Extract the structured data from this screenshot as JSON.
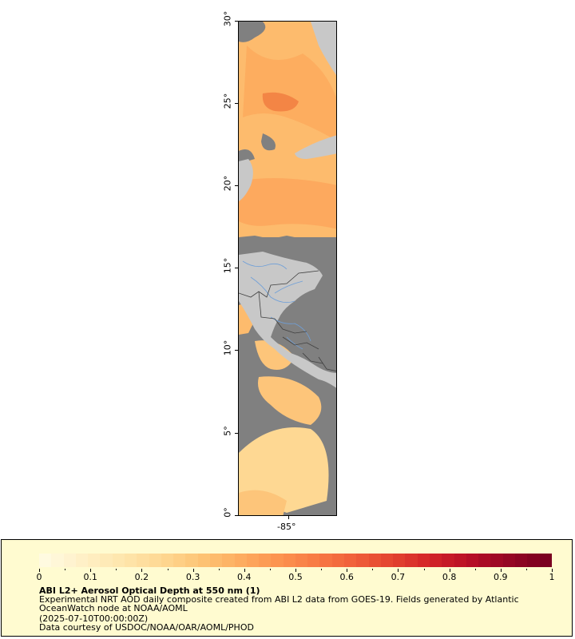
{
  "map": {
    "lat_ticks": [
      "0°",
      "5°",
      "10°",
      "15°",
      "20°",
      "25°",
      "30°"
    ],
    "lon_ticks": [
      "-85°"
    ],
    "lat_range": [
      0,
      30
    ],
    "colors": {
      "ocean_nodata": "#808080",
      "land": "#c8c8c8",
      "rivers": "#6f9fd8",
      "borders": "#404040",
      "aod_low": "#ffeebd",
      "aod_mid": "#fd9b4a",
      "aod_high": "#d7301f"
    }
  },
  "legend": {
    "colorbar_ticks": [
      "0",
      "0.1",
      "0.2",
      "0.3",
      "0.4",
      "0.5",
      "0.6",
      "0.7",
      "0.8",
      "0.9",
      "1"
    ],
    "colorbar_colors": [
      "#fffae0",
      "#ffefc6",
      "#fee6ad",
      "#fed893",
      "#fdc576",
      "#fdae61",
      "#fc9550",
      "#f87b45",
      "#f0603a",
      "#e34430",
      "#d32428",
      "#b80f26",
      "#960624",
      "#7a0020"
    ],
    "title": "ABI L2+ Aerosol Optical Depth at 550 nm (1)",
    "description": "Experimental NRT AOD daily composite created from ABI L2 data from GOES-19. Fields generated by Atlantic OceanWatch node at NOAA/AOML",
    "timestamp": "(2025-07-10T00:00:00Z)",
    "credit": "Data courtesy of USDOC/NOAA/OAR/AOML/PHOD"
  }
}
